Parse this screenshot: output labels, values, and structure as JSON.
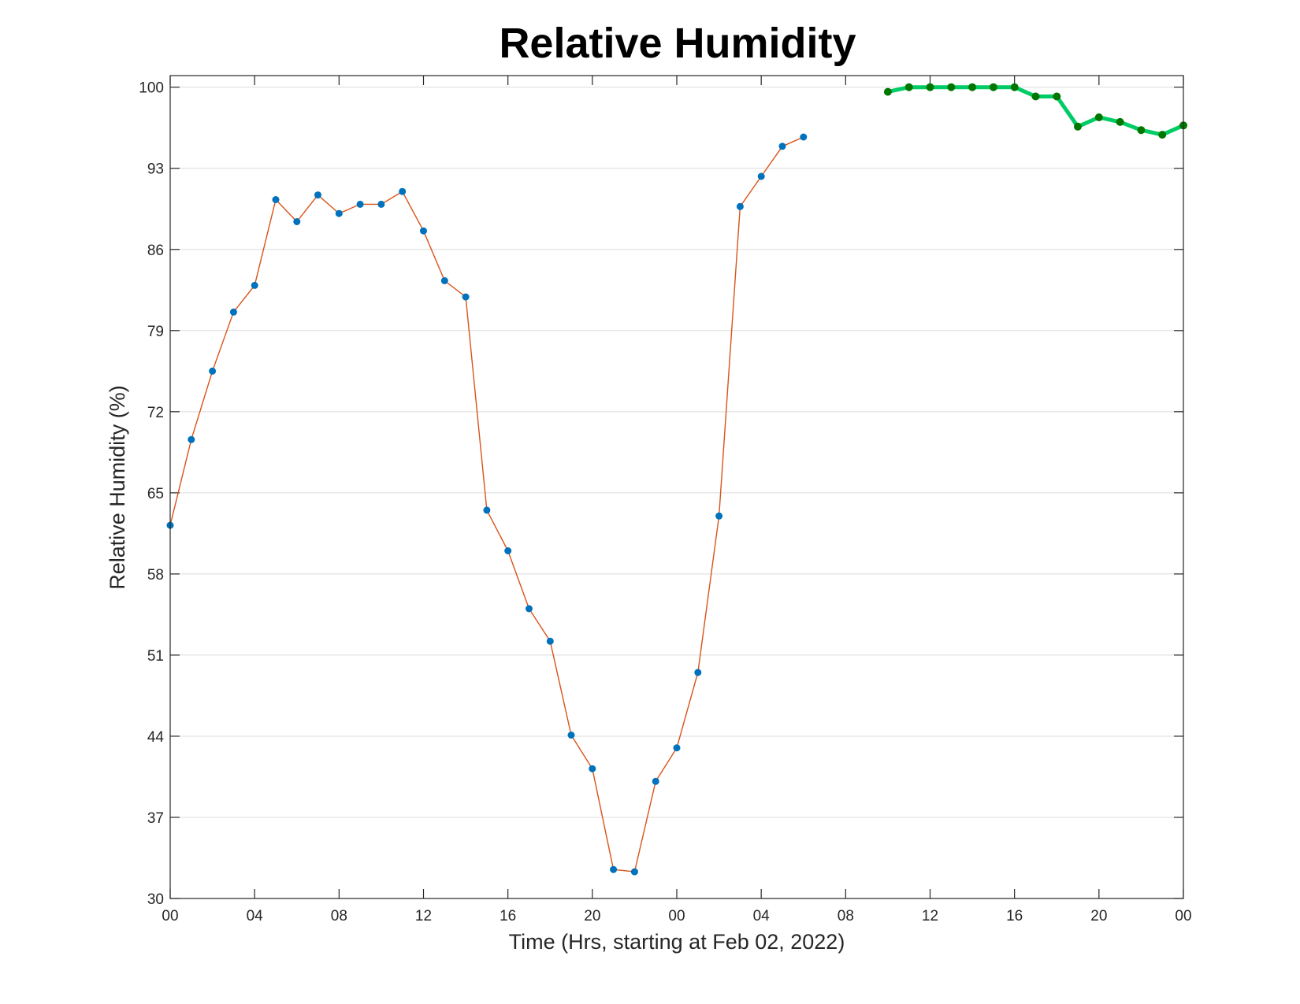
{
  "chart_data": {
    "type": "line",
    "title": "Relative Humidity",
    "xlabel": "Time (Hrs, starting at Feb 02, 2022)",
    "ylabel": "Relative Humidity (%)",
    "ylim": [
      30,
      101
    ],
    "xlim": [
      0,
      48
    ],
    "x_unit": "hours since 00:00 Feb 02, 2022",
    "yticks": [
      30,
      37,
      44,
      51,
      58,
      65,
      72,
      79,
      86,
      93,
      100
    ],
    "xticks": [
      {
        "x": 0,
        "label": "00"
      },
      {
        "x": 4,
        "label": "04"
      },
      {
        "x": 8,
        "label": "08"
      },
      {
        "x": 12,
        "label": "12"
      },
      {
        "x": 16,
        "label": "16"
      },
      {
        "x": 20,
        "label": "20"
      },
      {
        "x": 24,
        "label": "00"
      },
      {
        "x": 28,
        "label": "04"
      },
      {
        "x": 32,
        "label": "08"
      },
      {
        "x": 36,
        "label": "12"
      },
      {
        "x": 40,
        "label": "16"
      },
      {
        "x": 44,
        "label": "20"
      },
      {
        "x": 48,
        "label": "00"
      }
    ],
    "grid": "horizontal",
    "colors": {
      "line_orange": "#d95319",
      "marker_blue": "#0072bd",
      "line_green": "#00cc66",
      "marker_green": "#007700",
      "grid": "#dcdcdc",
      "axis": "#262626"
    },
    "series": [
      {
        "style": "thin-orange-line-blue-markers",
        "points": [
          [
            0,
            62.2
          ],
          [
            1,
            69.6
          ],
          [
            2,
            75.5
          ],
          [
            3,
            80.6
          ],
          [
            4,
            82.9
          ],
          [
            5,
            90.3
          ],
          [
            6,
            88.4
          ],
          [
            7,
            90.7
          ],
          [
            8,
            89.1
          ],
          [
            9,
            89.9
          ],
          [
            10,
            89.9
          ],
          [
            11,
            91.0
          ],
          [
            12,
            87.6
          ],
          [
            13,
            83.3
          ],
          [
            14,
            81.9
          ],
          [
            15,
            63.5
          ],
          [
            16,
            60.0
          ],
          [
            17,
            55.0
          ],
          [
            18,
            52.2
          ],
          [
            19,
            44.1
          ],
          [
            20,
            41.2
          ],
          [
            21,
            32.5
          ],
          [
            22,
            32.3
          ],
          [
            23,
            40.1
          ],
          [
            24,
            43.0
          ],
          [
            25,
            49.5
          ],
          [
            26,
            63.0
          ],
          [
            27,
            89.7
          ],
          [
            28,
            92.3
          ],
          [
            29,
            94.9
          ],
          [
            30,
            95.7
          ]
        ]
      },
      {
        "style": "thick-green-line-green-markers",
        "points": [
          [
            34,
            99.6
          ],
          [
            35,
            100.0
          ],
          [
            36,
            100.0
          ],
          [
            37,
            100.0
          ],
          [
            38,
            100.0
          ],
          [
            39,
            100.0
          ],
          [
            40,
            100.0
          ],
          [
            41,
            99.2
          ],
          [
            42,
            99.2
          ],
          [
            43,
            96.6
          ],
          [
            44,
            97.4
          ],
          [
            45,
            97.0
          ],
          [
            46,
            96.3
          ],
          [
            47,
            95.9
          ],
          [
            48,
            96.7
          ]
        ]
      }
    ]
  }
}
